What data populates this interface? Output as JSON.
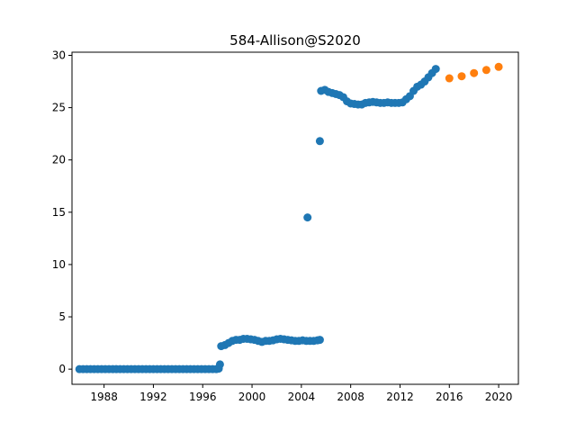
{
  "chart_data": {
    "type": "scatter",
    "title": "584-Allison@S2020",
    "xlabel": "",
    "ylabel": "",
    "xlim": [
      1985.4,
      2021.6
    ],
    "ylim": [
      -1.45,
      30.3
    ],
    "x_ticks": [
      1988,
      1992,
      1996,
      2000,
      2004,
      2008,
      2012,
      2016,
      2020
    ],
    "y_ticks": [
      0,
      5,
      10,
      15,
      20,
      25,
      30
    ],
    "grid": false,
    "legend": "none",
    "series": [
      {
        "color": "#1f77b4",
        "points": [
          [
            1986.0,
            0.0
          ],
          [
            1986.3,
            0.0
          ],
          [
            1986.6,
            0.0
          ],
          [
            1986.9,
            0.0
          ],
          [
            1987.2,
            0.0
          ],
          [
            1987.5,
            0.0
          ],
          [
            1987.8,
            0.0
          ],
          [
            1988.1,
            0.0
          ],
          [
            1988.4,
            0.0
          ],
          [
            1988.7,
            0.0
          ],
          [
            1989.0,
            0.0
          ],
          [
            1989.3,
            0.0
          ],
          [
            1989.6,
            0.0
          ],
          [
            1989.9,
            0.0
          ],
          [
            1990.2,
            0.0
          ],
          [
            1990.5,
            0.0
          ],
          [
            1990.8,
            0.0
          ],
          [
            1991.1,
            0.0
          ],
          [
            1991.4,
            0.0
          ],
          [
            1991.7,
            0.0
          ],
          [
            1992.0,
            0.0
          ],
          [
            1992.3,
            0.0
          ],
          [
            1992.6,
            0.0
          ],
          [
            1992.9,
            0.0
          ],
          [
            1993.2,
            0.0
          ],
          [
            1993.5,
            0.0
          ],
          [
            1993.8,
            0.0
          ],
          [
            1994.1,
            0.0
          ],
          [
            1994.4,
            0.0
          ],
          [
            1994.7,
            0.0
          ],
          [
            1995.0,
            0.0
          ],
          [
            1995.3,
            0.0
          ],
          [
            1995.6,
            0.0
          ],
          [
            1995.9,
            0.0
          ],
          [
            1996.2,
            0.0
          ],
          [
            1996.5,
            0.0
          ],
          [
            1996.8,
            0.0
          ],
          [
            1997.1,
            0.0
          ],
          [
            1997.3,
            0.05
          ],
          [
            1997.4,
            0.45
          ],
          [
            1997.5,
            2.2
          ],
          [
            1997.8,
            2.3
          ],
          [
            1998.1,
            2.5
          ],
          [
            1998.4,
            2.7
          ],
          [
            1998.7,
            2.8
          ],
          [
            1999.0,
            2.8
          ],
          [
            1999.3,
            2.9
          ],
          [
            1999.6,
            2.9
          ],
          [
            1999.9,
            2.85
          ],
          [
            2000.2,
            2.8
          ],
          [
            2000.5,
            2.7
          ],
          [
            2000.8,
            2.6
          ],
          [
            2001.1,
            2.7
          ],
          [
            2001.4,
            2.7
          ],
          [
            2001.7,
            2.75
          ],
          [
            2002.0,
            2.85
          ],
          [
            2002.3,
            2.9
          ],
          [
            2002.6,
            2.85
          ],
          [
            2002.9,
            2.8
          ],
          [
            2003.2,
            2.75
          ],
          [
            2003.5,
            2.7
          ],
          [
            2003.8,
            2.7
          ],
          [
            2004.1,
            2.75
          ],
          [
            2004.4,
            2.7
          ],
          [
            2004.7,
            2.7
          ],
          [
            2005.0,
            2.7
          ],
          [
            2005.3,
            2.75
          ],
          [
            2005.5,
            2.8
          ],
          [
            2004.5,
            14.5
          ],
          [
            2005.5,
            21.8
          ],
          [
            2005.6,
            26.6
          ],
          [
            2005.9,
            26.7
          ],
          [
            2006.2,
            26.5
          ],
          [
            2006.5,
            26.4
          ],
          [
            2006.8,
            26.3
          ],
          [
            2007.1,
            26.2
          ],
          [
            2007.4,
            26.0
          ],
          [
            2007.7,
            25.6
          ],
          [
            2008.0,
            25.4
          ],
          [
            2008.3,
            25.35
          ],
          [
            2008.6,
            25.3
          ],
          [
            2008.9,
            25.3
          ],
          [
            2009.2,
            25.45
          ],
          [
            2009.5,
            25.5
          ],
          [
            2009.8,
            25.55
          ],
          [
            2010.1,
            25.5
          ],
          [
            2010.4,
            25.45
          ],
          [
            2010.7,
            25.45
          ],
          [
            2011.0,
            25.5
          ],
          [
            2011.3,
            25.45
          ],
          [
            2011.6,
            25.45
          ],
          [
            2011.9,
            25.45
          ],
          [
            2012.2,
            25.5
          ],
          [
            2012.5,
            25.8
          ],
          [
            2012.8,
            26.1
          ],
          [
            2013.1,
            26.6
          ],
          [
            2013.4,
            27.0
          ],
          [
            2013.7,
            27.2
          ],
          [
            2014.0,
            27.5
          ],
          [
            2014.3,
            27.9
          ],
          [
            2014.6,
            28.3
          ],
          [
            2014.9,
            28.7
          ]
        ]
      },
      {
        "color": "#ff7f0e",
        "points": [
          [
            2016.0,
            27.8
          ],
          [
            2017.0,
            28.0
          ],
          [
            2018.0,
            28.3
          ],
          [
            2019.0,
            28.6
          ],
          [
            2020.0,
            28.9
          ]
        ]
      }
    ]
  }
}
